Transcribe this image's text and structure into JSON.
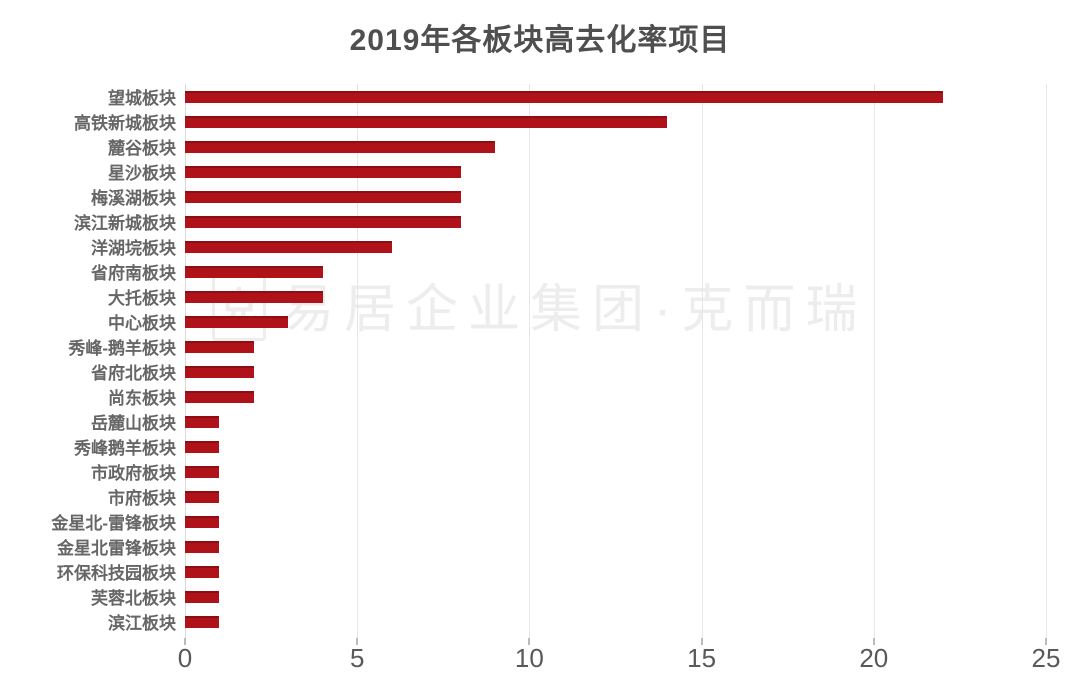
{
  "watermark": {
    "text": "易居企业集团·克而瑞",
    "logo_glyph": "克"
  },
  "chart_data": {
    "type": "bar",
    "orientation": "horizontal",
    "title": "2019年各板块高去化率项目",
    "categories": [
      "望城板块",
      "高铁新城板块",
      "麓谷板块",
      "星沙板块",
      "梅溪湖板块",
      "滨江新城板块",
      "洋湖垸板块",
      "省府南板块",
      "大托板块",
      "中心板块",
      "秀峰-鹅羊板块",
      "省府北板块",
      "尚东板块",
      "岳麓山板块",
      "秀峰鹅羊板块",
      "市政府板块",
      "市府板块",
      "金星北-雷锋板块",
      "金星北雷锋板块",
      "环保科技园板块",
      "芙蓉北板块",
      "滨江板块"
    ],
    "values": [
      22,
      14,
      9,
      8,
      8,
      8,
      6,
      4,
      4,
      3,
      2,
      2,
      2,
      1,
      1,
      1,
      1,
      1,
      1,
      1,
      1,
      1
    ],
    "xlabel": "",
    "ylabel": "",
    "xlim": [
      0,
      25
    ],
    "xticks": [
      0,
      5,
      10,
      15,
      20,
      25
    ],
    "grid": true,
    "legend": false,
    "bar_color": "#b0121a"
  },
  "colors": {
    "bar": "#b0121a",
    "barDark": "#8e0e13",
    "title": "#4f4f4f",
    "label": "#666666",
    "xlabel": "#595959",
    "grid": "#e6e6e6",
    "axis": "#d9d9d9",
    "tick": "#bbbbbb",
    "watermark": "#ededed",
    "background": "#ffffff"
  }
}
